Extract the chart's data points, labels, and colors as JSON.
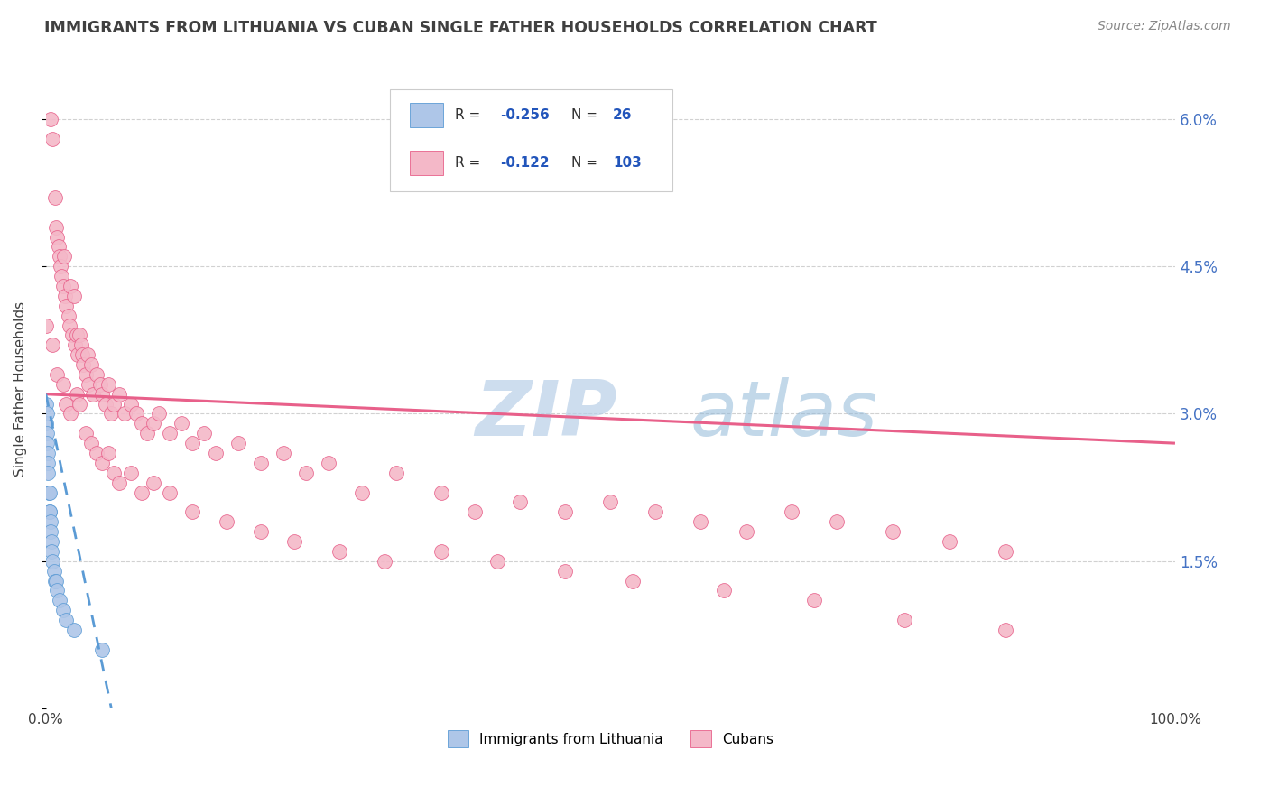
{
  "title": "IMMIGRANTS FROM LITHUANIA VS CUBAN SINGLE FATHER HOUSEHOLDS CORRELATION CHART",
  "source_text": "Source: ZipAtlas.com",
  "ylabel": "Single Father Households",
  "legend_labels": [
    "Immigrants from Lithuania",
    "Cubans"
  ],
  "xlim": [
    0.0,
    1.0
  ],
  "ylim": [
    0.0,
    0.065
  ],
  "yticks": [
    0.0,
    0.015,
    0.03,
    0.045,
    0.06
  ],
  "yticklabels_right": [
    "",
    "1.5%",
    "3.0%",
    "4.5%",
    "6.0%"
  ],
  "xticks": [
    0.0,
    1.0
  ],
  "xticklabels": [
    "0.0%",
    "100.0%"
  ],
  "background_color": "#ffffff",
  "grid_color": "#cccccc",
  "blue_dot_color": "#aec6e8",
  "pink_dot_color": "#f4b8c8",
  "blue_line_color": "#5b9bd5",
  "pink_line_color": "#e8608a",
  "watermark_zip": "ZIP",
  "watermark_atlas": "atlas",
  "watermark_color_zip": "#b8cfe8",
  "watermark_color_atlas": "#90b8d8",
  "title_color": "#404040",
  "source_color": "#888888",
  "legend_r_color": "#2255bb",
  "tick_label_color": "#4472c4",
  "pink_line_start_y": 0.032,
  "pink_line_end_y": 0.027,
  "blue_line_start_y": 0.032,
  "blue_line_end_x": 0.058,
  "blue_scatter_x": [
    0.0003,
    0.0005,
    0.0007,
    0.001,
    0.0012,
    0.0015,
    0.002,
    0.002,
    0.0025,
    0.003,
    0.003,
    0.0035,
    0.004,
    0.004,
    0.005,
    0.005,
    0.006,
    0.007,
    0.008,
    0.009,
    0.01,
    0.012,
    0.015,
    0.018,
    0.025,
    0.05
  ],
  "blue_scatter_y": [
    0.031,
    0.029,
    0.03,
    0.028,
    0.027,
    0.026,
    0.025,
    0.024,
    0.022,
    0.022,
    0.02,
    0.02,
    0.019,
    0.018,
    0.017,
    0.016,
    0.015,
    0.014,
    0.013,
    0.013,
    0.012,
    0.011,
    0.01,
    0.009,
    0.008,
    0.006
  ],
  "pink_scatter_x": [
    0.004,
    0.006,
    0.008,
    0.009,
    0.01,
    0.011,
    0.012,
    0.013,
    0.014,
    0.015,
    0.016,
    0.017,
    0.018,
    0.02,
    0.021,
    0.022,
    0.023,
    0.025,
    0.026,
    0.027,
    0.028,
    0.03,
    0.031,
    0.032,
    0.033,
    0.035,
    0.037,
    0.038,
    0.04,
    0.042,
    0.045,
    0.048,
    0.05,
    0.053,
    0.055,
    0.058,
    0.06,
    0.065,
    0.07,
    0.075,
    0.08,
    0.085,
    0.09,
    0.095,
    0.1,
    0.11,
    0.12,
    0.13,
    0.14,
    0.15,
    0.17,
    0.19,
    0.21,
    0.23,
    0.25,
    0.28,
    0.31,
    0.35,
    0.38,
    0.42,
    0.46,
    0.5,
    0.54,
    0.58,
    0.62,
    0.66,
    0.7,
    0.75,
    0.8,
    0.85,
    0.0,
    0.006,
    0.01,
    0.015,
    0.018,
    0.022,
    0.027,
    0.03,
    0.035,
    0.04,
    0.045,
    0.05,
    0.055,
    0.06,
    0.065,
    0.075,
    0.085,
    0.095,
    0.11,
    0.13,
    0.16,
    0.19,
    0.22,
    0.26,
    0.3,
    0.35,
    0.4,
    0.46,
    0.52,
    0.6,
    0.68,
    0.76,
    0.85
  ],
  "pink_scatter_y": [
    0.06,
    0.058,
    0.052,
    0.049,
    0.048,
    0.047,
    0.046,
    0.045,
    0.044,
    0.043,
    0.046,
    0.042,
    0.041,
    0.04,
    0.039,
    0.043,
    0.038,
    0.042,
    0.037,
    0.038,
    0.036,
    0.038,
    0.037,
    0.036,
    0.035,
    0.034,
    0.036,
    0.033,
    0.035,
    0.032,
    0.034,
    0.033,
    0.032,
    0.031,
    0.033,
    0.03,
    0.031,
    0.032,
    0.03,
    0.031,
    0.03,
    0.029,
    0.028,
    0.029,
    0.03,
    0.028,
    0.029,
    0.027,
    0.028,
    0.026,
    0.027,
    0.025,
    0.026,
    0.024,
    0.025,
    0.022,
    0.024,
    0.022,
    0.02,
    0.021,
    0.02,
    0.021,
    0.02,
    0.019,
    0.018,
    0.02,
    0.019,
    0.018,
    0.017,
    0.016,
    0.039,
    0.037,
    0.034,
    0.033,
    0.031,
    0.03,
    0.032,
    0.031,
    0.028,
    0.027,
    0.026,
    0.025,
    0.026,
    0.024,
    0.023,
    0.024,
    0.022,
    0.023,
    0.022,
    0.02,
    0.019,
    0.018,
    0.017,
    0.016,
    0.015,
    0.016,
    0.015,
    0.014,
    0.013,
    0.012,
    0.011,
    0.009,
    0.008
  ]
}
